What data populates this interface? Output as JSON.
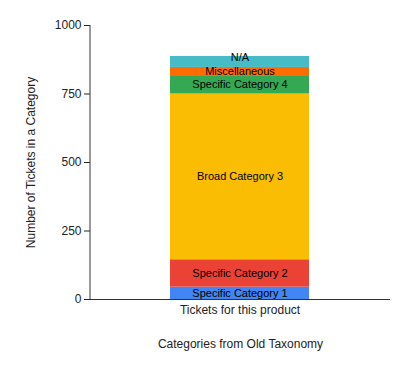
{
  "chart_data": {
    "type": "bar",
    "stacked": true,
    "grid": false,
    "categories": [
      "Tickets for this product"
    ],
    "x_label": "Categories from Old Taxonomy",
    "y_label": "Number of Tickets in a Category",
    "ylim": [
      0,
      1000
    ],
    "yticks": [
      0,
      250,
      500,
      750,
      1000
    ],
    "series": [
      {
        "name": "Specific Category 1",
        "color": "#4285f4",
        "values": [
          45
        ]
      },
      {
        "name": "Specific Category 2",
        "color": "#ea4335",
        "values": [
          100
        ]
      },
      {
        "name": "Broad Category 3",
        "color": "#fbbc04",
        "values": [
          605
        ]
      },
      {
        "name": "Specific Category 4",
        "color": "#34a853",
        "values": [
          67
        ]
      },
      {
        "name": "Miscellaneous",
        "color": "#ff6d01",
        "values": [
          30
        ]
      },
      {
        "name": "N/A",
        "color": "#46bdc6",
        "values": [
          40
        ]
      }
    ]
  }
}
